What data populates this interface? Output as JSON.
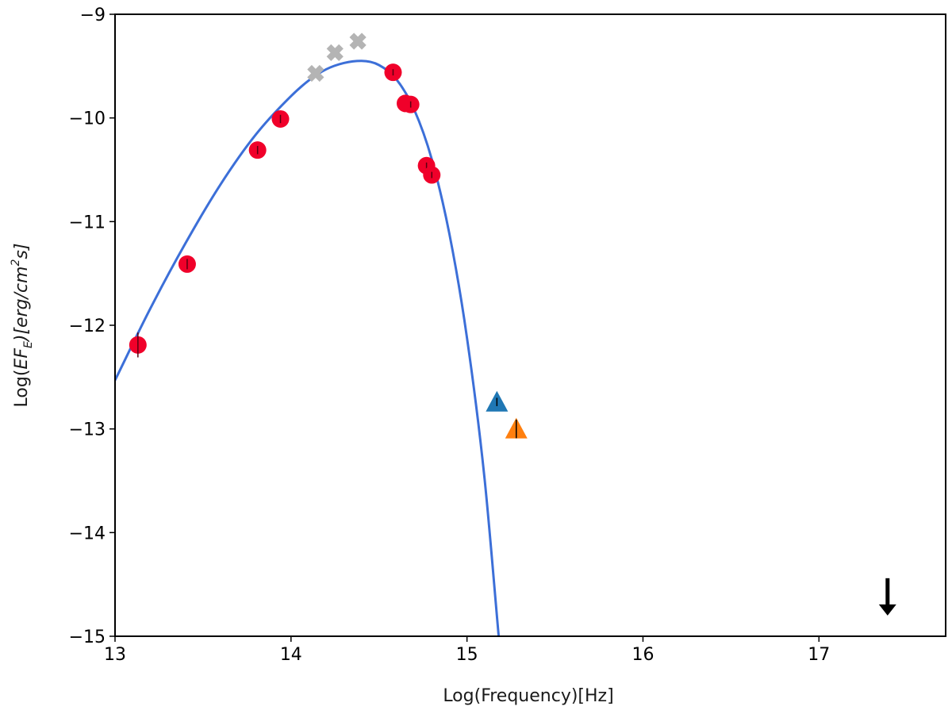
{
  "chart_data": {
    "type": "scatter",
    "title": "",
    "xlabel": "Log(Frequency)[Hz]",
    "ylabel": {
      "prefix": "Log(",
      "ef": "EF",
      "ef_sub": "E",
      "mid": ")[erg/cm",
      "sup": "2",
      "suffix": "s]"
    },
    "xlim": [
      13.0,
      17.72
    ],
    "ylim": [
      -15.0,
      -9.0
    ],
    "xticks": [
      13,
      14,
      15,
      16,
      17
    ],
    "yticks": [
      -9,
      -10,
      -11,
      -12,
      -13,
      -14,
      -15
    ],
    "xtick_labels": [
      "13",
      "14",
      "15",
      "16",
      "17"
    ],
    "ytick_labels": [
      "−9",
      "−10",
      "−11",
      "−12",
      "−13",
      "−14",
      "−15"
    ],
    "grid": false,
    "model_curve": {
      "color": "#3c6fd8",
      "x": [
        13.0,
        13.2,
        13.4,
        13.6,
        13.8,
        14.0,
        14.1,
        14.2,
        14.3,
        14.4,
        14.5,
        14.6,
        14.7,
        14.8,
        14.9,
        15.0,
        15.1,
        15.18
      ],
      "y": [
        -12.53,
        -11.84,
        -11.21,
        -10.64,
        -10.16,
        -9.79,
        -9.64,
        -9.53,
        -9.47,
        -9.45,
        -9.49,
        -9.63,
        -9.92,
        -10.4,
        -11.12,
        -12.12,
        -13.48,
        -15.0
      ]
    },
    "series": [
      {
        "marker": "circle",
        "color": "#f0002a",
        "points": [
          {
            "x": 13.13,
            "y": -12.19,
            "yerr": 0.12
          },
          {
            "x": 13.41,
            "y": -11.41,
            "yerr": 0.05
          },
          {
            "x": 13.81,
            "y": -10.31,
            "yerr": 0.04
          },
          {
            "x": 13.94,
            "y": -10.01,
            "yerr": 0.04
          },
          {
            "x": 14.58,
            "y": -9.56,
            "yerr": 0.03
          },
          {
            "x": 14.65,
            "y": -9.86,
            "yerr": 0.03
          },
          {
            "x": 14.68,
            "y": -9.87,
            "yerr": 0.03
          },
          {
            "x": 14.77,
            "y": -10.46,
            "yerr": 0.03
          },
          {
            "x": 14.8,
            "y": -10.55,
            "yerr": 0.03
          }
        ]
      },
      {
        "marker": "x-cross",
        "color": "#b4b4b4",
        "points": [
          {
            "x": 14.14,
            "y": -9.57
          },
          {
            "x": 14.25,
            "y": -9.37
          },
          {
            "x": 14.38,
            "y": -9.26
          }
        ]
      },
      {
        "marker": "triangle-up",
        "color": "#1f77b4",
        "points": [
          {
            "x": 15.17,
            "y": -12.74,
            "yerr": 0.04
          }
        ]
      },
      {
        "marker": "triangle-up",
        "color": "#ff7f0e",
        "points": [
          {
            "x": 15.28,
            "y": -13.0,
            "yerr": 0.09
          }
        ]
      },
      {
        "marker": "upper-limit-arrow",
        "color": "#000000",
        "points": [
          {
            "x": 17.39,
            "y": -14.44,
            "y_to": -14.8
          }
        ]
      }
    ]
  }
}
